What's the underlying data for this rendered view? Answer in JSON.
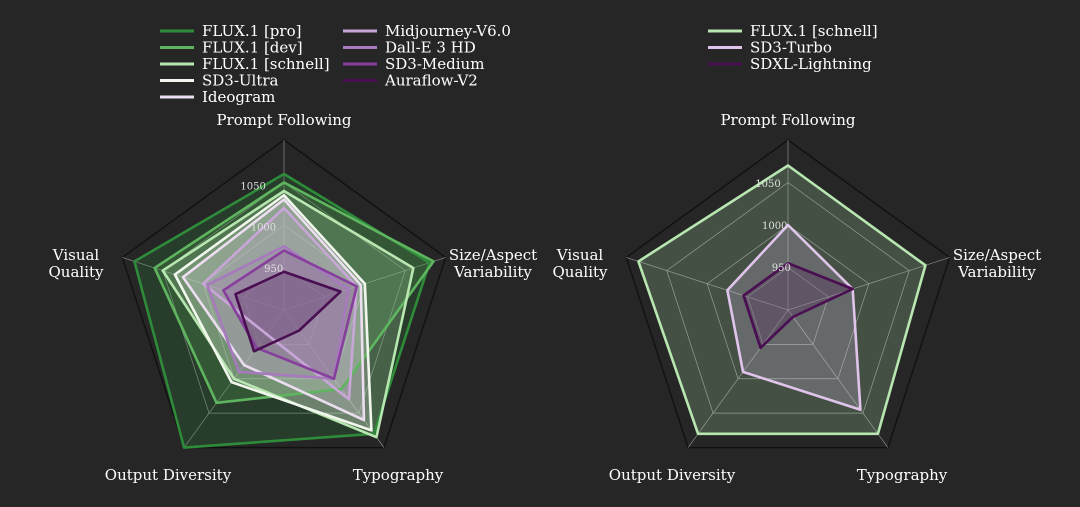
{
  "chart_data": [
    {
      "type": "radar",
      "axes": [
        "Prompt Following",
        "Size/Aspect\nVariability",
        "Typography",
        "Output Diversity",
        "Visual\nQuality"
      ],
      "rlim": [
        900,
        1100
      ],
      "rticks": [
        950,
        1000,
        1050
      ],
      "rticks_labeled": [
        950,
        1000,
        1050
      ],
      "grid": true,
      "legend_position": "top",
      "series": [
        {
          "name": "FLUX.1 [pro]",
          "color": "#2e8b3a",
          "values": [
            1060,
            1080,
            1080,
            1100,
            1085
          ]
        },
        {
          "name": "FLUX.1 [dev]",
          "color": "#5fb55f",
          "values": [
            1050,
            1085,
            1015,
            1035,
            1060
          ]
        },
        {
          "name": "FLUX.1 [schnell]",
          "color": "#b8e6b0",
          "values": [
            1040,
            1060,
            1085,
            1000,
            1050
          ]
        },
        {
          "name": "SD3-Ultra",
          "color": "#f2f7ee",
          "values": [
            1035,
            1000,
            1075,
            1005,
            1035
          ]
        },
        {
          "name": "Ideogram",
          "color": "#ecdef0",
          "values": [
            1030,
            995,
            1060,
            980,
            1025
          ]
        },
        {
          "name": "Midjourney-V6.0",
          "color": "#c9a6d8",
          "values": [
            1020,
            990,
            1030,
            935,
            1000
          ]
        },
        {
          "name": "Dall-E 3 HD",
          "color": "#a779bd",
          "values": [
            975,
            980,
            1000,
            990,
            995
          ]
        },
        {
          "name": "SD3-Medium",
          "color": "#873f9d",
          "values": [
            970,
            990,
            1000,
            955,
            975
          ]
        },
        {
          "name": "Auraflow-V2",
          "color": "#4a0f52",
          "values": [
            945,
            970,
            930,
            960,
            960
          ]
        }
      ],
      "fill_opacity": 0.22
    },
    {
      "type": "radar",
      "axes": [
        "Prompt Following",
        "Size/Aspect\nVariability",
        "Typography",
        "Output Diversity",
        "Visual\nQuality"
      ],
      "rlim": [
        900,
        1100
      ],
      "rticks": [
        950,
        1000,
        1050
      ],
      "rticks_labeled": [
        950,
        1000,
        1050
      ],
      "grid": true,
      "legend_position": "top",
      "series": [
        {
          "name": "FLUX.1 [schnell]",
          "color": "#b8e6b0",
          "values": [
            1070,
            1070,
            1080,
            1080,
            1085
          ]
        },
        {
          "name": "SD3-Turbo",
          "color": "#e0c4ec",
          "values": [
            1000,
            980,
            1045,
            990,
            975
          ]
        },
        {
          "name": "SDXL-Lightning",
          "color": "#4a0f52",
          "values": [
            955,
            980,
            910,
            955,
            955
          ]
        }
      ],
      "fill_opacity": 0.22
    }
  ]
}
